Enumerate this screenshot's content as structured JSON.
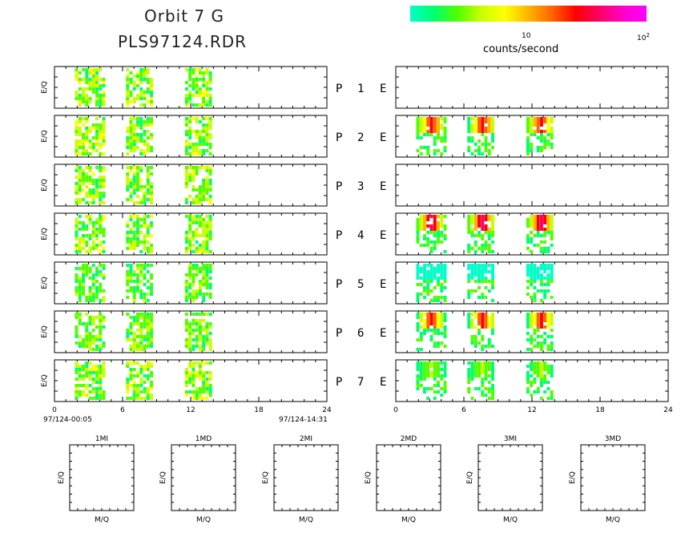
{
  "header": {
    "title_line1": "Orbit 7 G",
    "title_line2": "PLS97124.RDR"
  },
  "colorbar": {
    "label": "counts/second",
    "tick_10": "10",
    "tick_100_base": "10",
    "tick_100_exp": "2",
    "colors": [
      "#00ffc8",
      "#00ff6e",
      "#50ff00",
      "#c8ff00",
      "#ffff00",
      "#ffb400",
      "#ff6400",
      "#ff0000",
      "#ff0064",
      "#ff00c8",
      "#ff00ff"
    ]
  },
  "chart_data": {
    "type": "heatmap",
    "y_axis_label": "E/Q",
    "rows": [
      {
        "p": "P",
        "n": "1",
        "e": "E"
      },
      {
        "p": "P",
        "n": "2",
        "e": "E"
      },
      {
        "p": "P",
        "n": "3",
        "e": "E"
      },
      {
        "p": "P",
        "n": "4",
        "e": "E"
      },
      {
        "p": "P",
        "n": "5",
        "e": "E"
      },
      {
        "p": "P",
        "n": "6",
        "e": "E"
      },
      {
        "p": "P",
        "n": "7",
        "e": "E"
      }
    ],
    "x_ticks": [
      "0",
      "6",
      "12",
      "18",
      "24"
    ],
    "xlim": [
      0,
      24
    ],
    "start_time": "97/124-00:05",
    "end_time": "97/124-14:31",
    "left_bursts": [
      {
        "row": 0,
        "centers": [
          3,
          7.5,
          12.7
        ],
        "level": 0.35
      },
      {
        "row": 1,
        "centers": [
          3,
          7.5,
          12.7
        ],
        "level": 0.35
      },
      {
        "row": 2,
        "centers": [
          3,
          7.5,
          12.7
        ],
        "level": 0.35
      },
      {
        "row": 3,
        "centers": [
          3,
          7.5,
          12.7
        ],
        "level": 0.35
      },
      {
        "row": 4,
        "centers": [
          3,
          7.5,
          12.7
        ],
        "level": 0.25
      },
      {
        "row": 5,
        "centers": [
          3,
          7.5,
          12.7
        ],
        "level": 0.3
      },
      {
        "row": 6,
        "centers": [
          3,
          7.5,
          12.7
        ],
        "level": 0.35
      }
    ],
    "right_bursts": [
      {
        "row": 1,
        "centers": [
          3,
          7.5,
          12.7
        ],
        "level": 0.75
      },
      {
        "row": 3,
        "centers": [
          3,
          7.5,
          12.7
        ],
        "level": 0.85
      },
      {
        "row": 4,
        "centers": [
          3,
          7.5,
          12.7
        ],
        "level": 0.05
      },
      {
        "row": 5,
        "centers": [
          3,
          7.5,
          12.7
        ],
        "level": 0.7
      },
      {
        "row": 6,
        "centers": [
          3,
          7.5,
          12.7
        ],
        "level": 0.3
      }
    ],
    "mass_panels": [
      {
        "title": "1MI",
        "xlabel": "M/Q",
        "ylabel": "E/Q"
      },
      {
        "title": "1MD",
        "xlabel": "M/Q",
        "ylabel": "E/Q"
      },
      {
        "title": "2MI",
        "xlabel": "M/Q",
        "ylabel": "E/Q"
      },
      {
        "title": "2MD",
        "xlabel": "M/Q",
        "ylabel": "E/Q"
      },
      {
        "title": "3MI",
        "xlabel": "M/Q",
        "ylabel": "E/Q"
      },
      {
        "title": "3MD",
        "xlabel": "M/Q",
        "ylabel": "E/Q"
      }
    ]
  }
}
